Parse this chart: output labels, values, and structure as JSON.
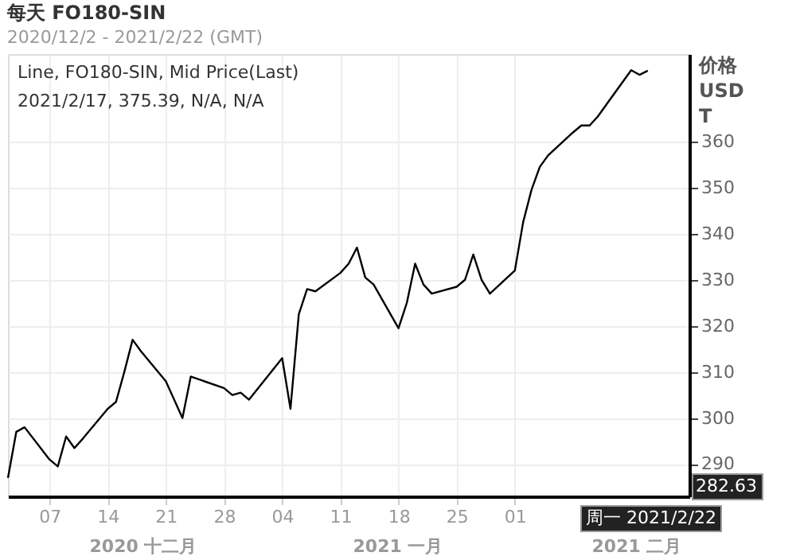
{
  "chart_data": {
    "type": "line",
    "title": "每天 FO180-SIN",
    "subtitle": "2020/12/2 - 2021/2/22 (GMT)",
    "ylabel": "价格 USD T",
    "x": [
      "2020-12-02",
      "2020-12-03",
      "2020-12-04",
      "2020-12-07",
      "2020-12-08",
      "2020-12-09",
      "2020-12-10",
      "2020-12-11",
      "2020-12-14",
      "2020-12-15",
      "2020-12-16",
      "2020-12-17",
      "2020-12-18",
      "2020-12-21",
      "2020-12-22",
      "2020-12-23",
      "2020-12-24",
      "2020-12-28",
      "2020-12-29",
      "2020-12-30",
      "2020-12-31",
      "2021-01-04",
      "2021-01-05",
      "2021-01-06",
      "2021-01-07",
      "2021-01-08",
      "2021-01-11",
      "2021-01-12",
      "2021-01-13",
      "2021-01-14",
      "2021-01-15",
      "2021-01-18",
      "2021-01-19",
      "2021-01-20",
      "2021-01-21",
      "2021-01-22",
      "2021-01-25",
      "2021-01-26",
      "2021-01-27",
      "2021-01-28",
      "2021-01-29",
      "2021-02-01",
      "2021-02-02",
      "2021-02-03",
      "2021-02-04",
      "2021-02-05",
      "2021-02-08",
      "2021-02-09",
      "2021-02-10",
      "2021-02-11",
      "2021-02-15",
      "2021-02-16",
      "2021-02-17"
    ],
    "series": [
      {
        "color": "#000000",
        "values": [
          287,
          297,
          298,
          291,
          289.5,
          296,
          293.5,
          295.5,
          302,
          303.5,
          310,
          317,
          314.5,
          308,
          304,
          300,
          309,
          306.5,
          305,
          305.5,
          304,
          313,
          302,
          322.5,
          328,
          327.5,
          331.5,
          333.5,
          337,
          330.5,
          329,
          319.5,
          325,
          333.5,
          329,
          327,
          328.5,
          330,
          335.5,
          330,
          327,
          332,
          342.5,
          349.5,
          354.5,
          357,
          362,
          363.5,
          363.5,
          365.5,
          375.5,
          374.5,
          375.39
        ]
      }
    ],
    "xlim": [
      "2020-12-02",
      "2021-02-22"
    ],
    "xticks": [
      {
        "value": "2020-12-07",
        "label": "07"
      },
      {
        "value": "2020-12-14",
        "label": "14"
      },
      {
        "value": "2020-12-21",
        "label": "21"
      },
      {
        "value": "2020-12-28",
        "label": "28"
      },
      {
        "value": "2021-01-04",
        "label": "04"
      },
      {
        "value": "2021-01-11",
        "label": "11"
      },
      {
        "value": "2021-01-18",
        "label": "18"
      },
      {
        "value": "2021-01-25",
        "label": "25"
      },
      {
        "value": "2021-02-01",
        "label": "01"
      }
    ],
    "ylim": [
      283,
      379
    ],
    "yticks": [
      290,
      300,
      310,
      320,
      330,
      340,
      350,
      360
    ],
    "grid": true,
    "line_style": "solid",
    "marker": "none",
    "annotations": [
      "Line, FO180-SIN, Mid Price(Last)",
      "2021/2/17, 375.39, N/A, N/A",
      "2020 十二月",
      "2021 一月",
      "2021 二月",
      "282.63",
      "周一 2021/2/22"
    ]
  }
}
